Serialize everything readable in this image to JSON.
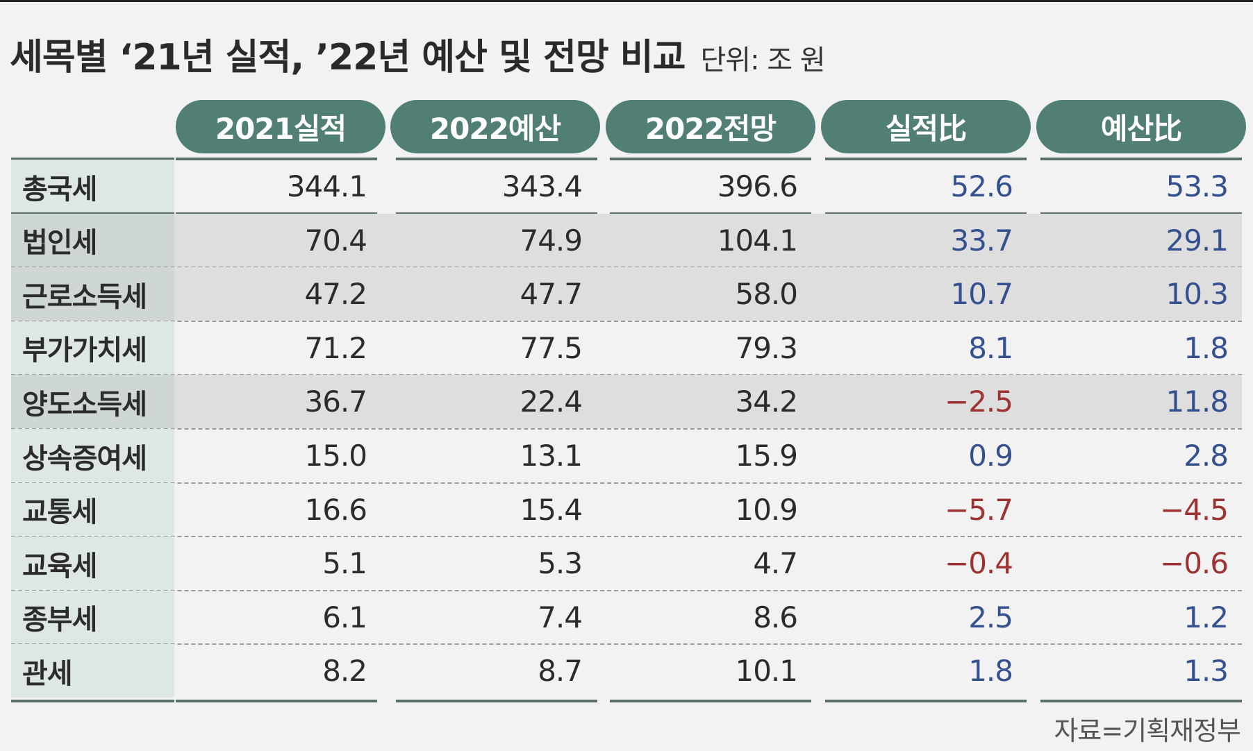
{
  "title": "세목별 ‘21년 실적, ’22년 예산 및 전망 비교",
  "unit": "단위: 조 원",
  "source": "자료=기획재정부",
  "colors": {
    "header": "#517f76",
    "positive": "#34508f",
    "negative": "#9c3232"
  },
  "chart_data": {
    "type": "table",
    "title": "세목별 ‘21년 실적, ’22년 예산 및 전망 비교",
    "unit": "단위: 조 원",
    "columns": [
      "2021실적",
      "2022예산",
      "2022전망",
      "실적比",
      "예산比"
    ],
    "rows": [
      {
        "label": "총국세",
        "values": [
          "344.1",
          "343.4",
          "396.6",
          "52.6",
          "53.3"
        ]
      },
      {
        "label": "법인세",
        "values": [
          "70.4",
          "74.9",
          "104.1",
          "33.7",
          "29.1"
        ]
      },
      {
        "label": "근로소득세",
        "values": [
          "47.2",
          "47.7",
          "58.0",
          "10.7",
          "10.3"
        ]
      },
      {
        "label": "부가가치세",
        "values": [
          "71.2",
          "77.5",
          "79.3",
          "8.1",
          "1.8"
        ]
      },
      {
        "label": "양도소득세",
        "values": [
          "36.7",
          "22.4",
          "34.2",
          "−2.5",
          "11.8"
        ]
      },
      {
        "label": "상속증여세",
        "values": [
          "15.0",
          "13.1",
          "15.9",
          "0.9",
          "2.8"
        ]
      },
      {
        "label": "교통세",
        "values": [
          "16.6",
          "15.4",
          "10.9",
          "−5.7",
          "−4.5"
        ]
      },
      {
        "label": "교육세",
        "values": [
          "5.1",
          "5.3",
          "4.7",
          "−0.4",
          "−0.6"
        ]
      },
      {
        "label": "종부세",
        "values": [
          "6.1",
          "7.4",
          "8.6",
          "2.5",
          "1.2"
        ]
      },
      {
        "label": "관세",
        "values": [
          "8.2",
          "8.7",
          "10.1",
          "1.8",
          "1.3"
        ]
      }
    ],
    "shaded_rows": [
      1,
      2,
      4
    ],
    "source": "자료=기획재정부"
  }
}
